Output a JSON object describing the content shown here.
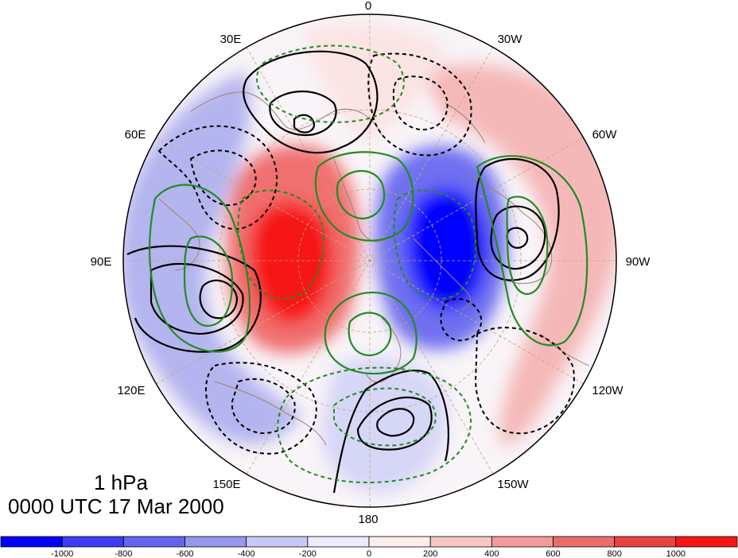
{
  "map": {
    "projection": "north-polar-stereographic",
    "longitude_labels": [
      "0",
      "30W",
      "60W",
      "90W",
      "120W",
      "150W",
      "180",
      "150E",
      "120E",
      "90E",
      "60E",
      "30E"
    ],
    "contour_colors": {
      "positive": "#000000",
      "negative": "#000000",
      "green": "#228b22",
      "coast": "#a0826d",
      "grid": "#c8a27a"
    }
  },
  "caption": {
    "level": "1 hPa",
    "time": "0000 UTC 17 Mar 2000"
  },
  "colorbar": {
    "colors": [
      "#0000ff",
      "#3c3cf5",
      "#6464f0",
      "#9696eb",
      "#c8c8f5",
      "#ececfc",
      "#fdeeee",
      "#f7c6c6",
      "#f29a9a",
      "#ec6c6c",
      "#e84343",
      "#f71515"
    ],
    "tick_labels": [
      "-1000",
      "-800",
      "-600",
      "-400",
      "-200",
      "0",
      "200",
      "400",
      "600",
      "800",
      "1000"
    ]
  }
}
